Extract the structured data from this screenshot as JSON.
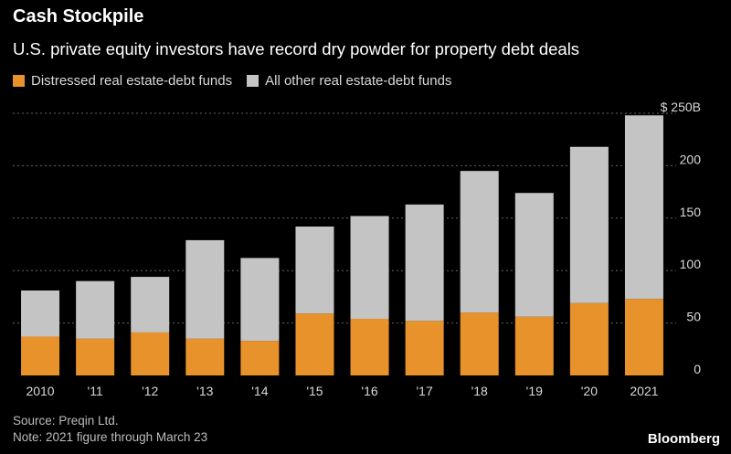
{
  "header": {
    "title": "Cash Stockpile",
    "subtitle": "U.S. private equity investors have record dry powder for property debt deals"
  },
  "footer": {
    "source": "Source: Preqin Ltd.",
    "note": "Note: 2021 figure through March 23",
    "brand": "Bloomberg"
  },
  "colors": {
    "distressed": "#e8922b",
    "other": "#c4c4c4",
    "grid": "#666666",
    "axis_text": "#d9d9d9"
  },
  "chart_data": {
    "type": "bar",
    "stacked": true,
    "categories": [
      "2010",
      "'11",
      "'12",
      "'13",
      "'14",
      "'15",
      "'16",
      "'17",
      "'18",
      "'19",
      "'20",
      "2021"
    ],
    "series": [
      {
        "name": "Distressed real estate-debt funds",
        "values": [
          37,
          35,
          41,
          35,
          33,
          59,
          54,
          52,
          60,
          56,
          69,
          73
        ]
      },
      {
        "name": "All other real estate-debt funds",
        "values": [
          44,
          55,
          53,
          94,
          79,
          83,
          98,
          111,
          135,
          118,
          149,
          175
        ]
      }
    ],
    "title": "Cash Stockpile",
    "subtitle": "U.S. private equity investors have record dry powder for property debt deals",
    "ylim": [
      0,
      250
    ],
    "yticks": [
      0,
      50,
      100,
      150,
      200,
      250
    ],
    "ytick_labels": [
      "0",
      "50",
      "100",
      "150",
      "200",
      "$ 250B"
    ],
    "grid": true,
    "legend": "top-left",
    "y_axis_position": "right"
  }
}
